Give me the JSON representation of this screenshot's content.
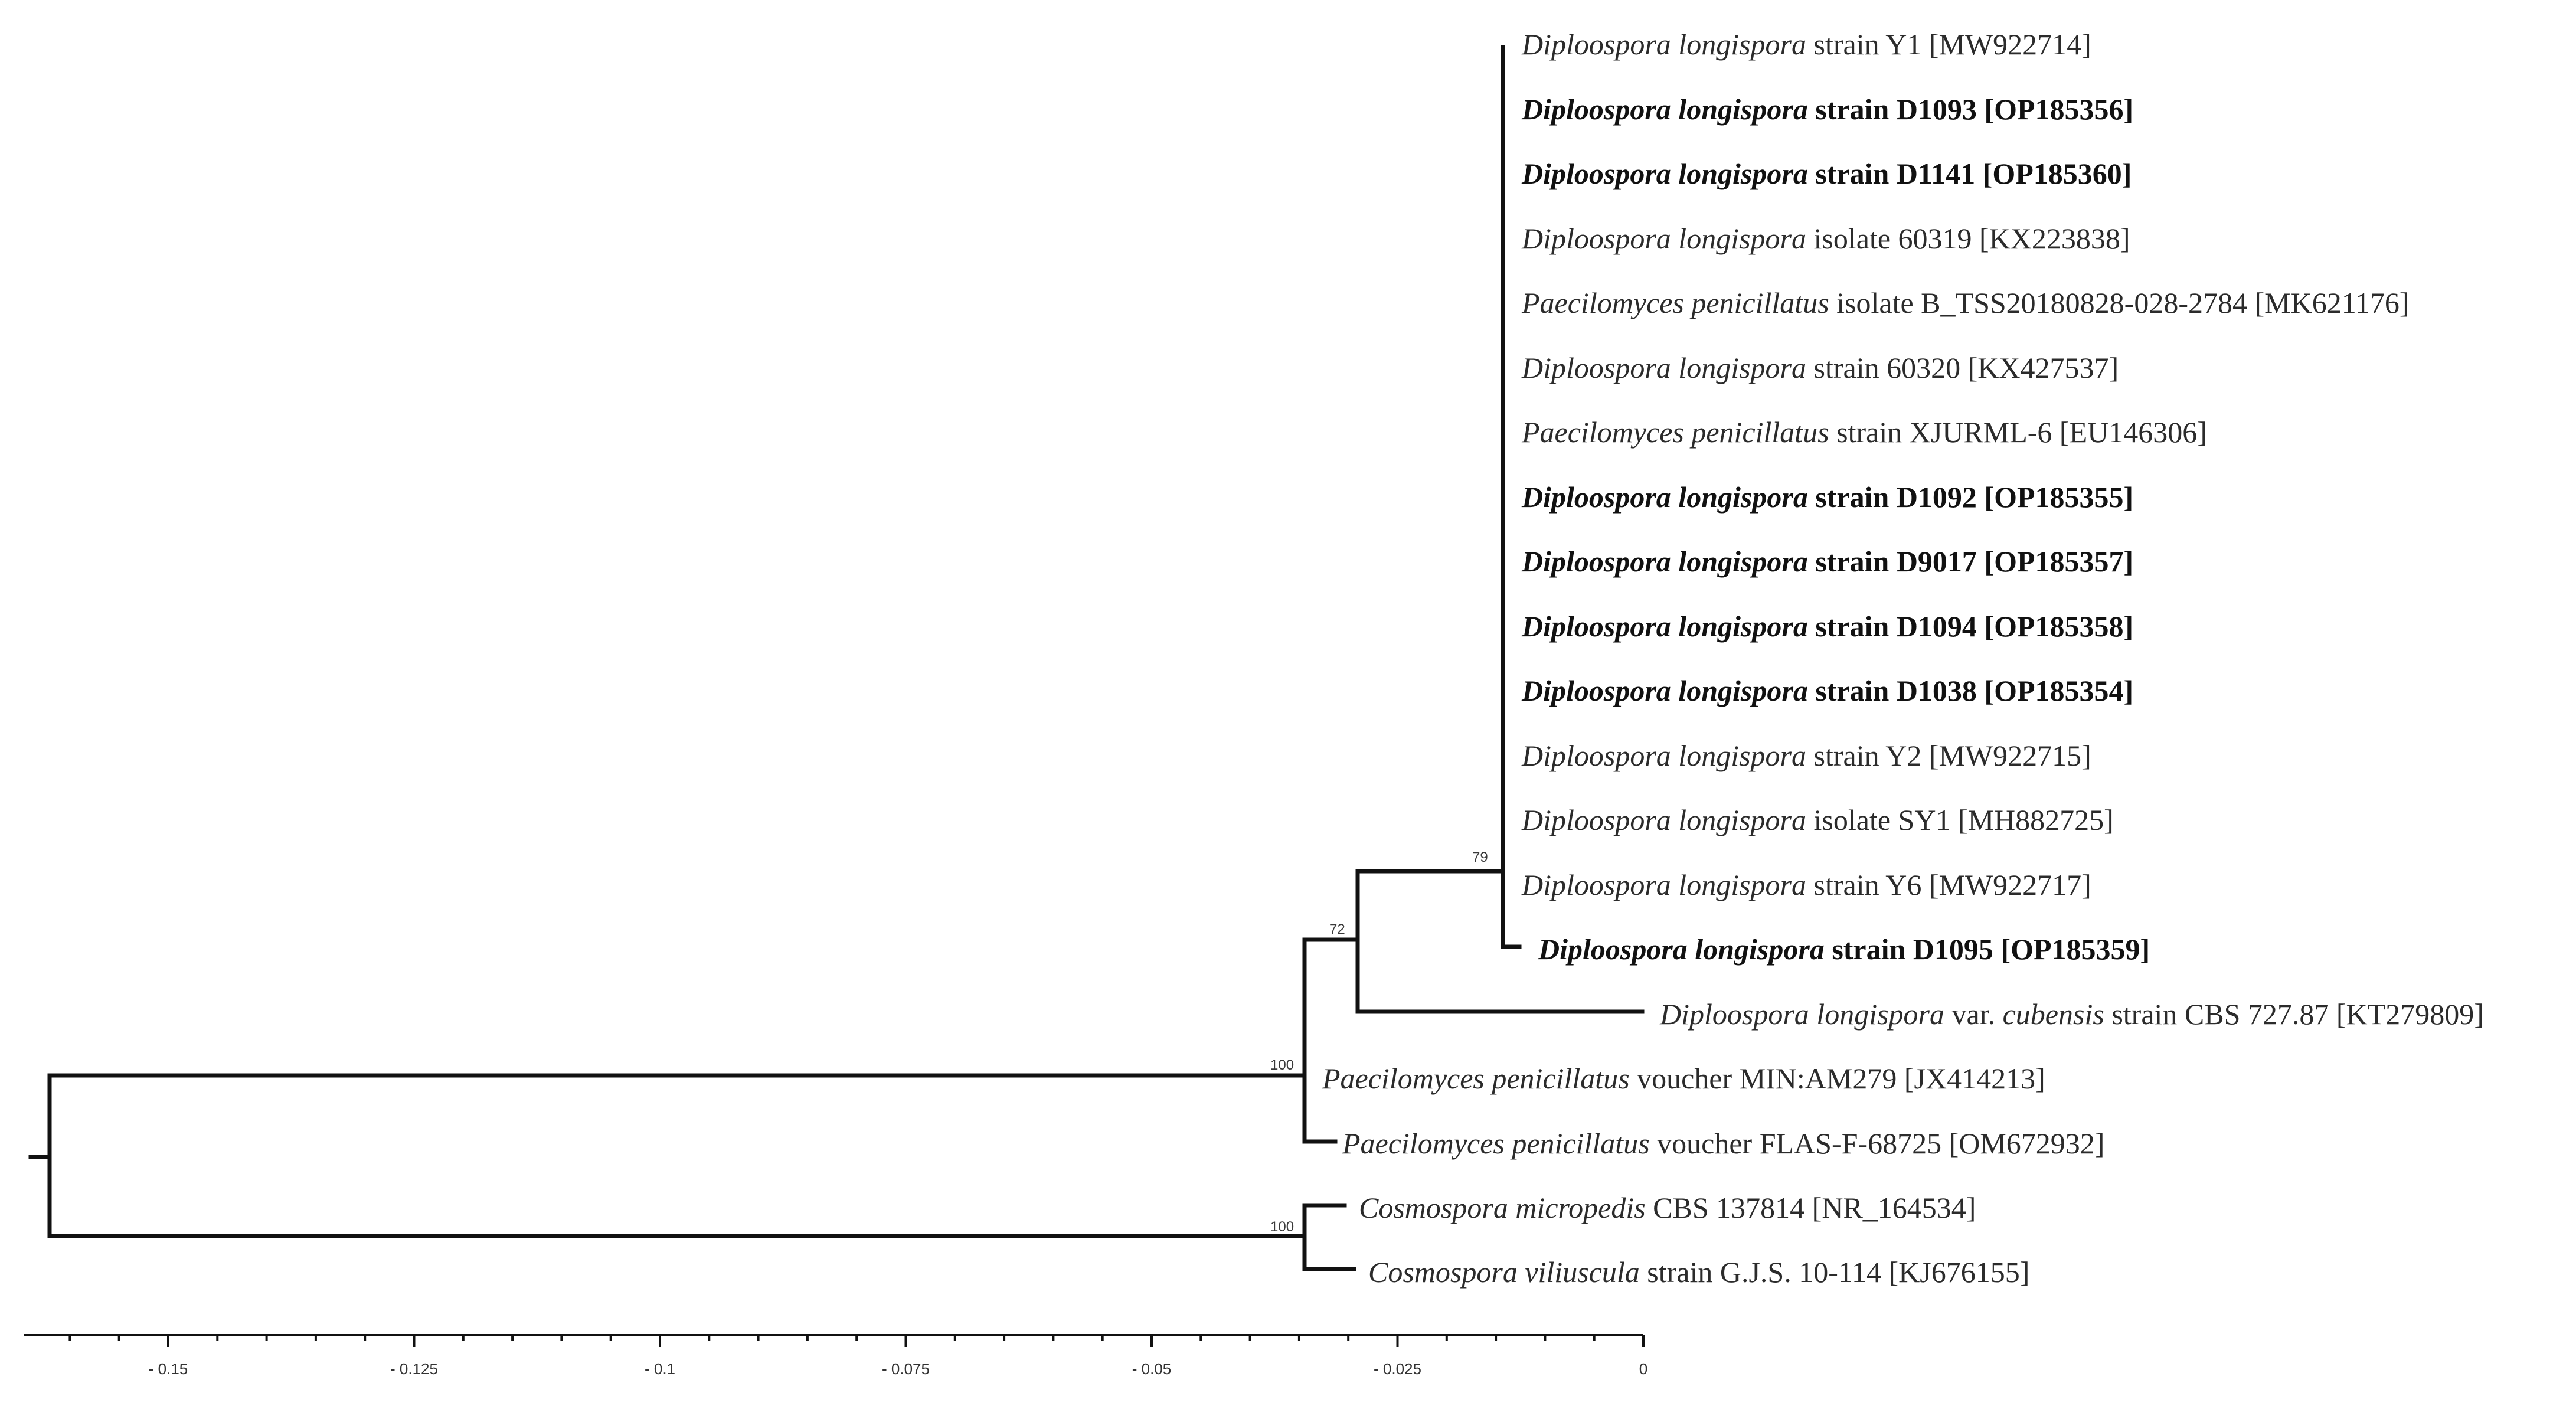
{
  "figure": {
    "type": "phylogenetic-tree",
    "branch_color": "#111111",
    "text_color": "#2b2b2b"
  },
  "scale_axis": {
    "min": -0.165,
    "max": 0,
    "ticks": [
      {
        "value": -0.15,
        "label": "- 0.15"
      },
      {
        "value": -0.125,
        "label": "- 0.125"
      },
      {
        "value": -0.1,
        "label": "- 0.1"
      },
      {
        "value": -0.075,
        "label": "- 0.075"
      },
      {
        "value": -0.05,
        "label": "- 0.05"
      },
      {
        "value": -0.025,
        "label": "- 0.025"
      },
      {
        "value": 0,
        "label": "0"
      }
    ]
  },
  "taxa": [
    {
      "id": "t1",
      "species": "Diploospora longispora",
      "rest": " strain Y1 [MW922714]",
      "bold": false
    },
    {
      "id": "t2",
      "species": "Diploospora longispora",
      "rest": " strain D1093 [OP185356]",
      "bold": true
    },
    {
      "id": "t3",
      "species": "Diploospora longispora",
      "rest": " strain D1141 [OP185360]",
      "bold": true
    },
    {
      "id": "t4",
      "species": "Diploospora longispora",
      "rest": " isolate 60319 [KX223838]",
      "bold": false
    },
    {
      "id": "t5",
      "species": "Paecilomyces penicillatus",
      "rest": " isolate B_TSS20180828-028-2784 [MK621176]",
      "bold": false
    },
    {
      "id": "t6",
      "species": "Diploospora longispora",
      "rest": " strain 60320 [KX427537]",
      "bold": false
    },
    {
      "id": "t7",
      "species": "Paecilomyces penicillatus",
      "rest": " strain XJURML-6 [EU146306]",
      "bold": false
    },
    {
      "id": "t8",
      "species": "Diploospora longispora",
      "rest": " strain D1092 [OP185355]",
      "bold": true
    },
    {
      "id": "t9",
      "species": "Diploospora longispora",
      "rest": " strain D9017 [OP185357]",
      "bold": true
    },
    {
      "id": "t10",
      "species": "Diploospora longispora",
      "rest": " strain D1094 [OP185358]",
      "bold": true
    },
    {
      "id": "t11",
      "species": "Diploospora longispora",
      "rest": " strain D1038 [OP185354]",
      "bold": true
    },
    {
      "id": "t12",
      "species": "Diploospora longispora",
      "rest": " strain Y2 [MW922715]",
      "bold": false
    },
    {
      "id": "t13",
      "species": "Diploospora longispora",
      "rest": " isolate SY1 [MH882725]",
      "bold": false
    },
    {
      "id": "t14",
      "species": "Diploospora longispora",
      "rest": " strain Y6 [MW922717]",
      "bold": false
    },
    {
      "id": "t15",
      "species": "Diploospora longispora",
      "rest": " strain D1095 [OP185359]",
      "bold": true
    },
    {
      "id": "t16",
      "species": "Diploospora longispora",
      "rest_before": " var. ",
      "variety": "cubensis",
      "rest": " strain CBS 727.87 [KT279809]",
      "bold": false
    },
    {
      "id": "t17",
      "species": "Paecilomyces penicillatus",
      "rest": " voucher MIN:AM279 [JX414213]",
      "bold": false
    },
    {
      "id": "t18",
      "species": "Paecilomyces penicillatus",
      "rest": " voucher FLAS-F-68725 [OM672932]",
      "bold": false
    },
    {
      "id": "t19",
      "species": "Cosmospora micropedis",
      "rest": " CBS 137814 [NR_164534]",
      "bold": false
    },
    {
      "id": "t20",
      "species": "Cosmospora viliuscula",
      "rest": " strain G.J.S. 10-114 [KJ676155]",
      "bold": false
    }
  ],
  "bootstrap_supports": [
    {
      "node": "diploospora-clade",
      "value": "79"
    },
    {
      "node": "diploospora-cubensis-clade",
      "value": "72"
    },
    {
      "node": "paecilomyces-clade",
      "value": "100"
    },
    {
      "node": "cosmospora-clade",
      "value": "100"
    }
  ]
}
